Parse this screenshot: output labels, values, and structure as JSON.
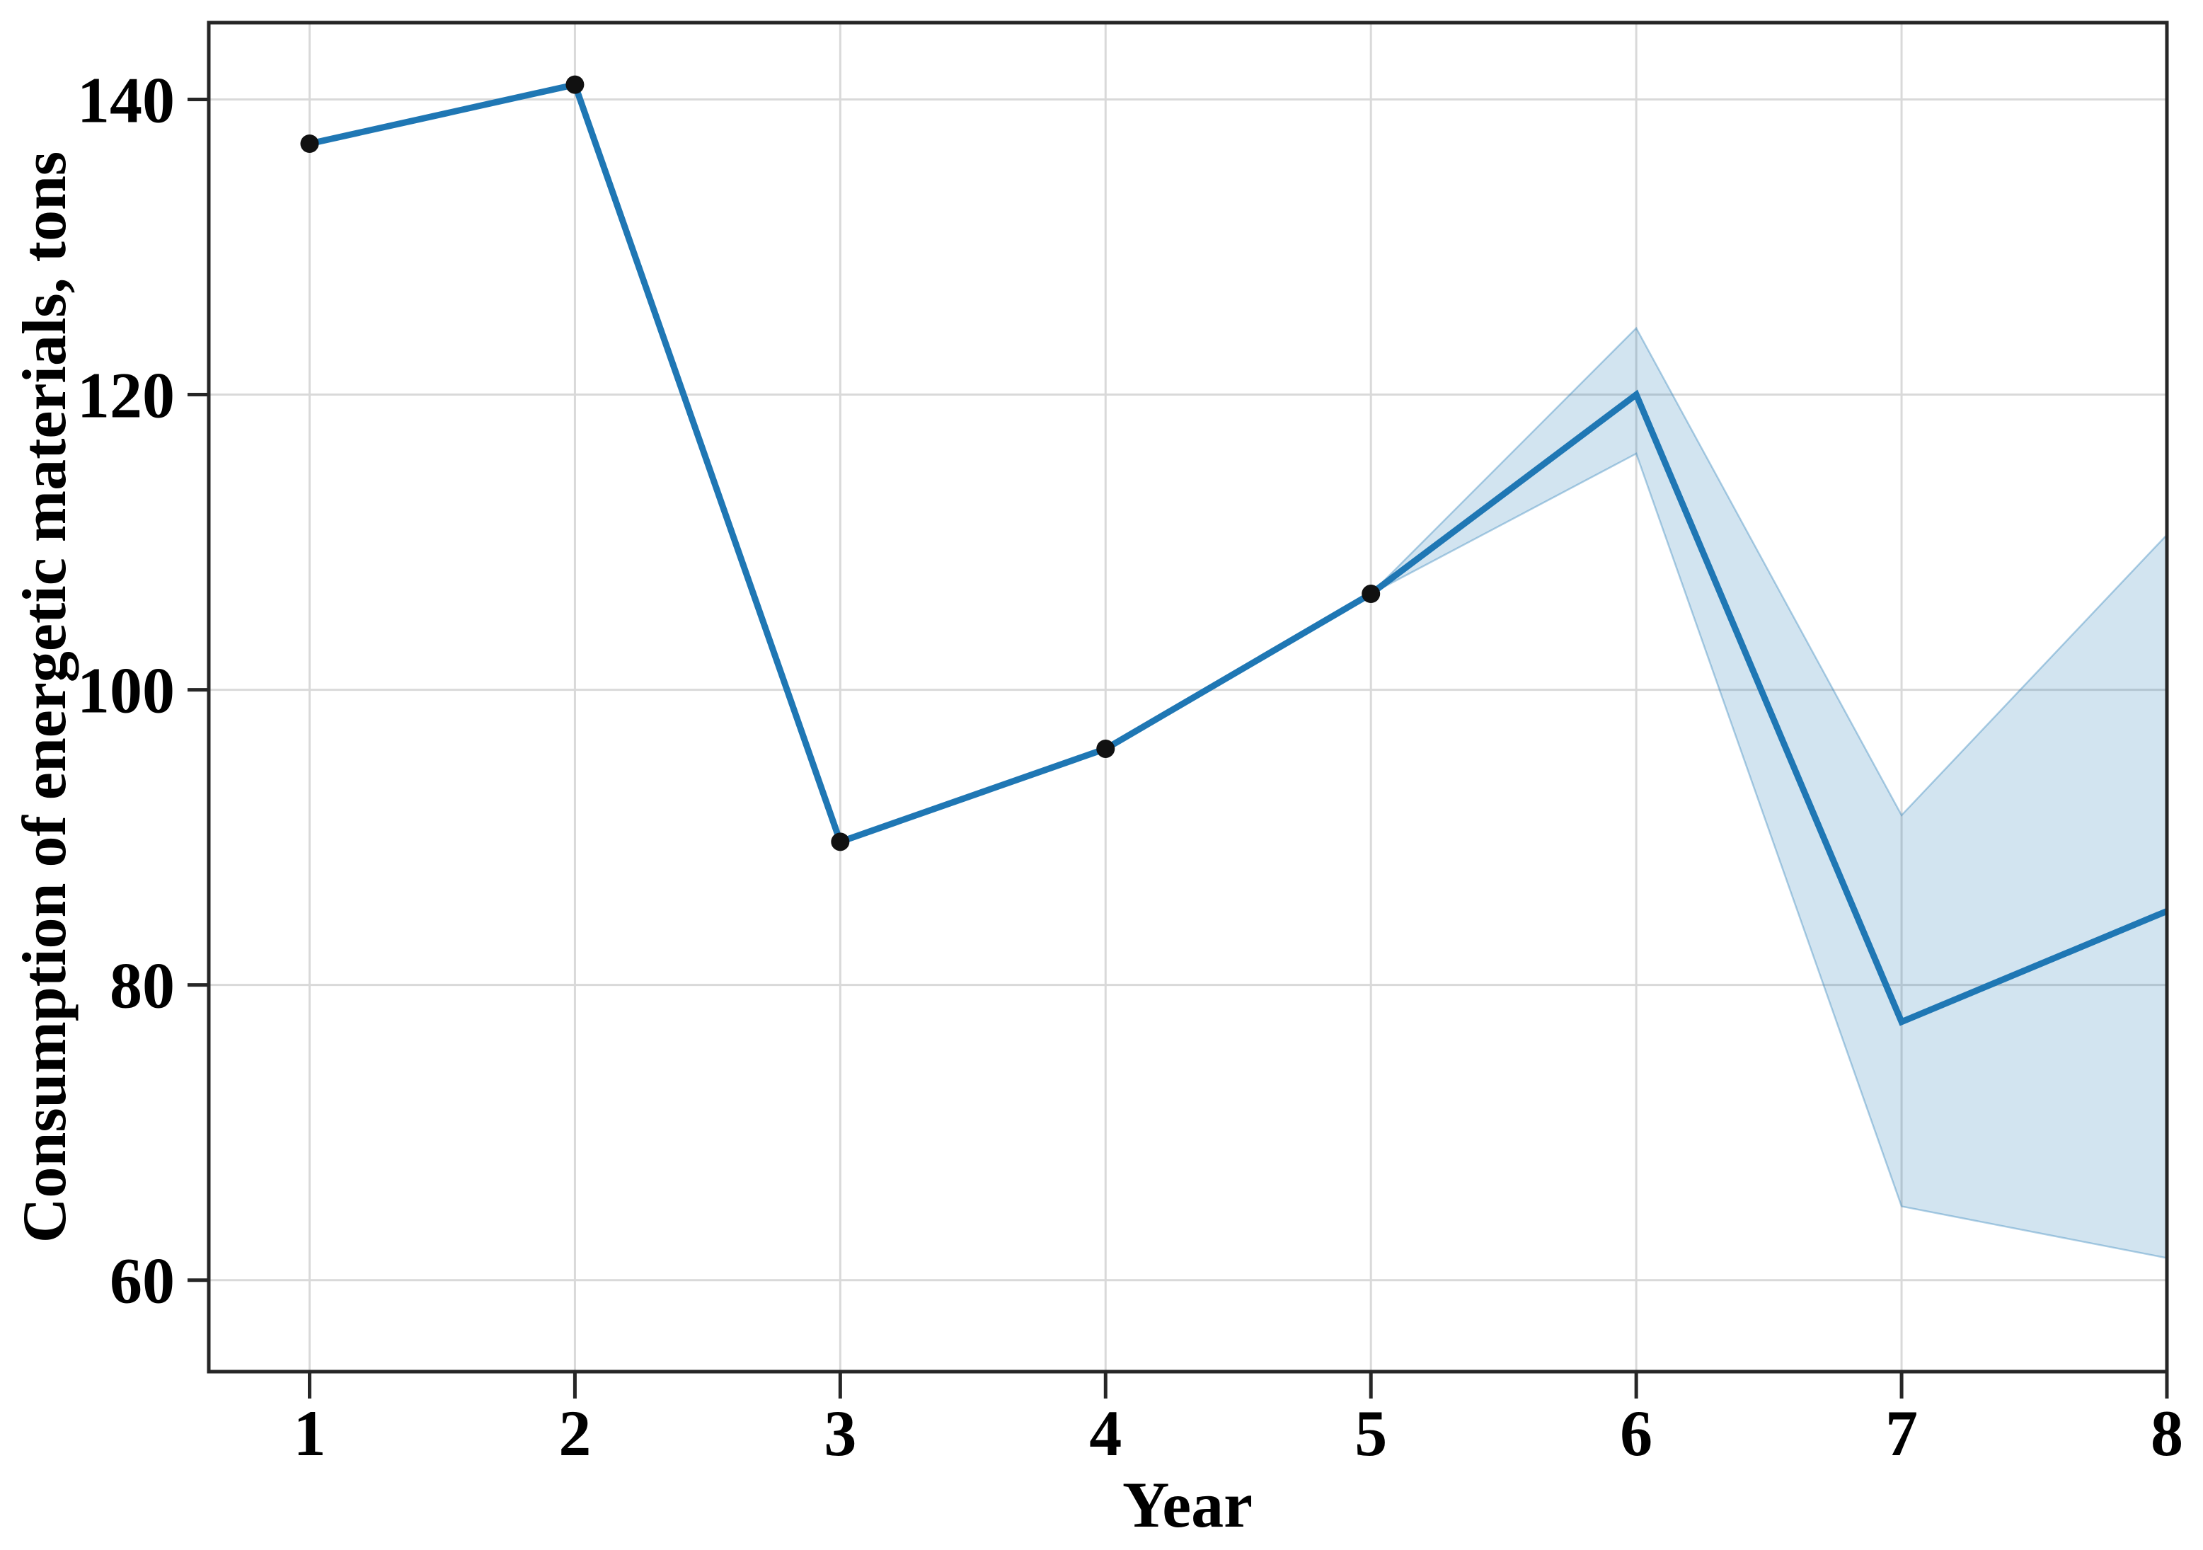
{
  "chart_data": {
    "type": "line",
    "title": "",
    "xlabel": "Year",
    "ylabel": "Consumption of energetic materials, tons",
    "xlim": [
      0.62,
      8
    ],
    "ylim": [
      53.8,
      145.2
    ],
    "xticks": [
      1,
      2,
      3,
      4,
      5,
      6,
      7,
      8
    ],
    "yticks": [
      60,
      80,
      100,
      120,
      140
    ],
    "grid": true,
    "legend_position": "none",
    "series": [
      {
        "name": "consumption",
        "type": "line",
        "x": [
          1,
          2,
          3,
          4,
          5,
          6,
          7,
          8
        ],
        "values": [
          137,
          141,
          89.7,
          96,
          106.5,
          120,
          77.5,
          85
        ],
        "markers_at_x": [
          1,
          2,
          3,
          4,
          5
        ]
      },
      {
        "name": "forecast-confidence-band",
        "type": "band",
        "x": [
          5,
          6,
          7,
          8
        ],
        "upper": [
          106.5,
          124.5,
          91.5,
          110.5
        ],
        "lower": [
          106.5,
          116,
          65,
          61.5
        ]
      }
    ],
    "colors": {
      "line": "#1f77b4",
      "marker": "#111111",
      "band_fill": "#1f77b4",
      "band_fill_opacity": 0.2,
      "band_edge": "#1f77b4",
      "band_edge_opacity": 0.35,
      "grid": "#d9d9d9",
      "spine": "#262626",
      "text": "#000000"
    }
  }
}
